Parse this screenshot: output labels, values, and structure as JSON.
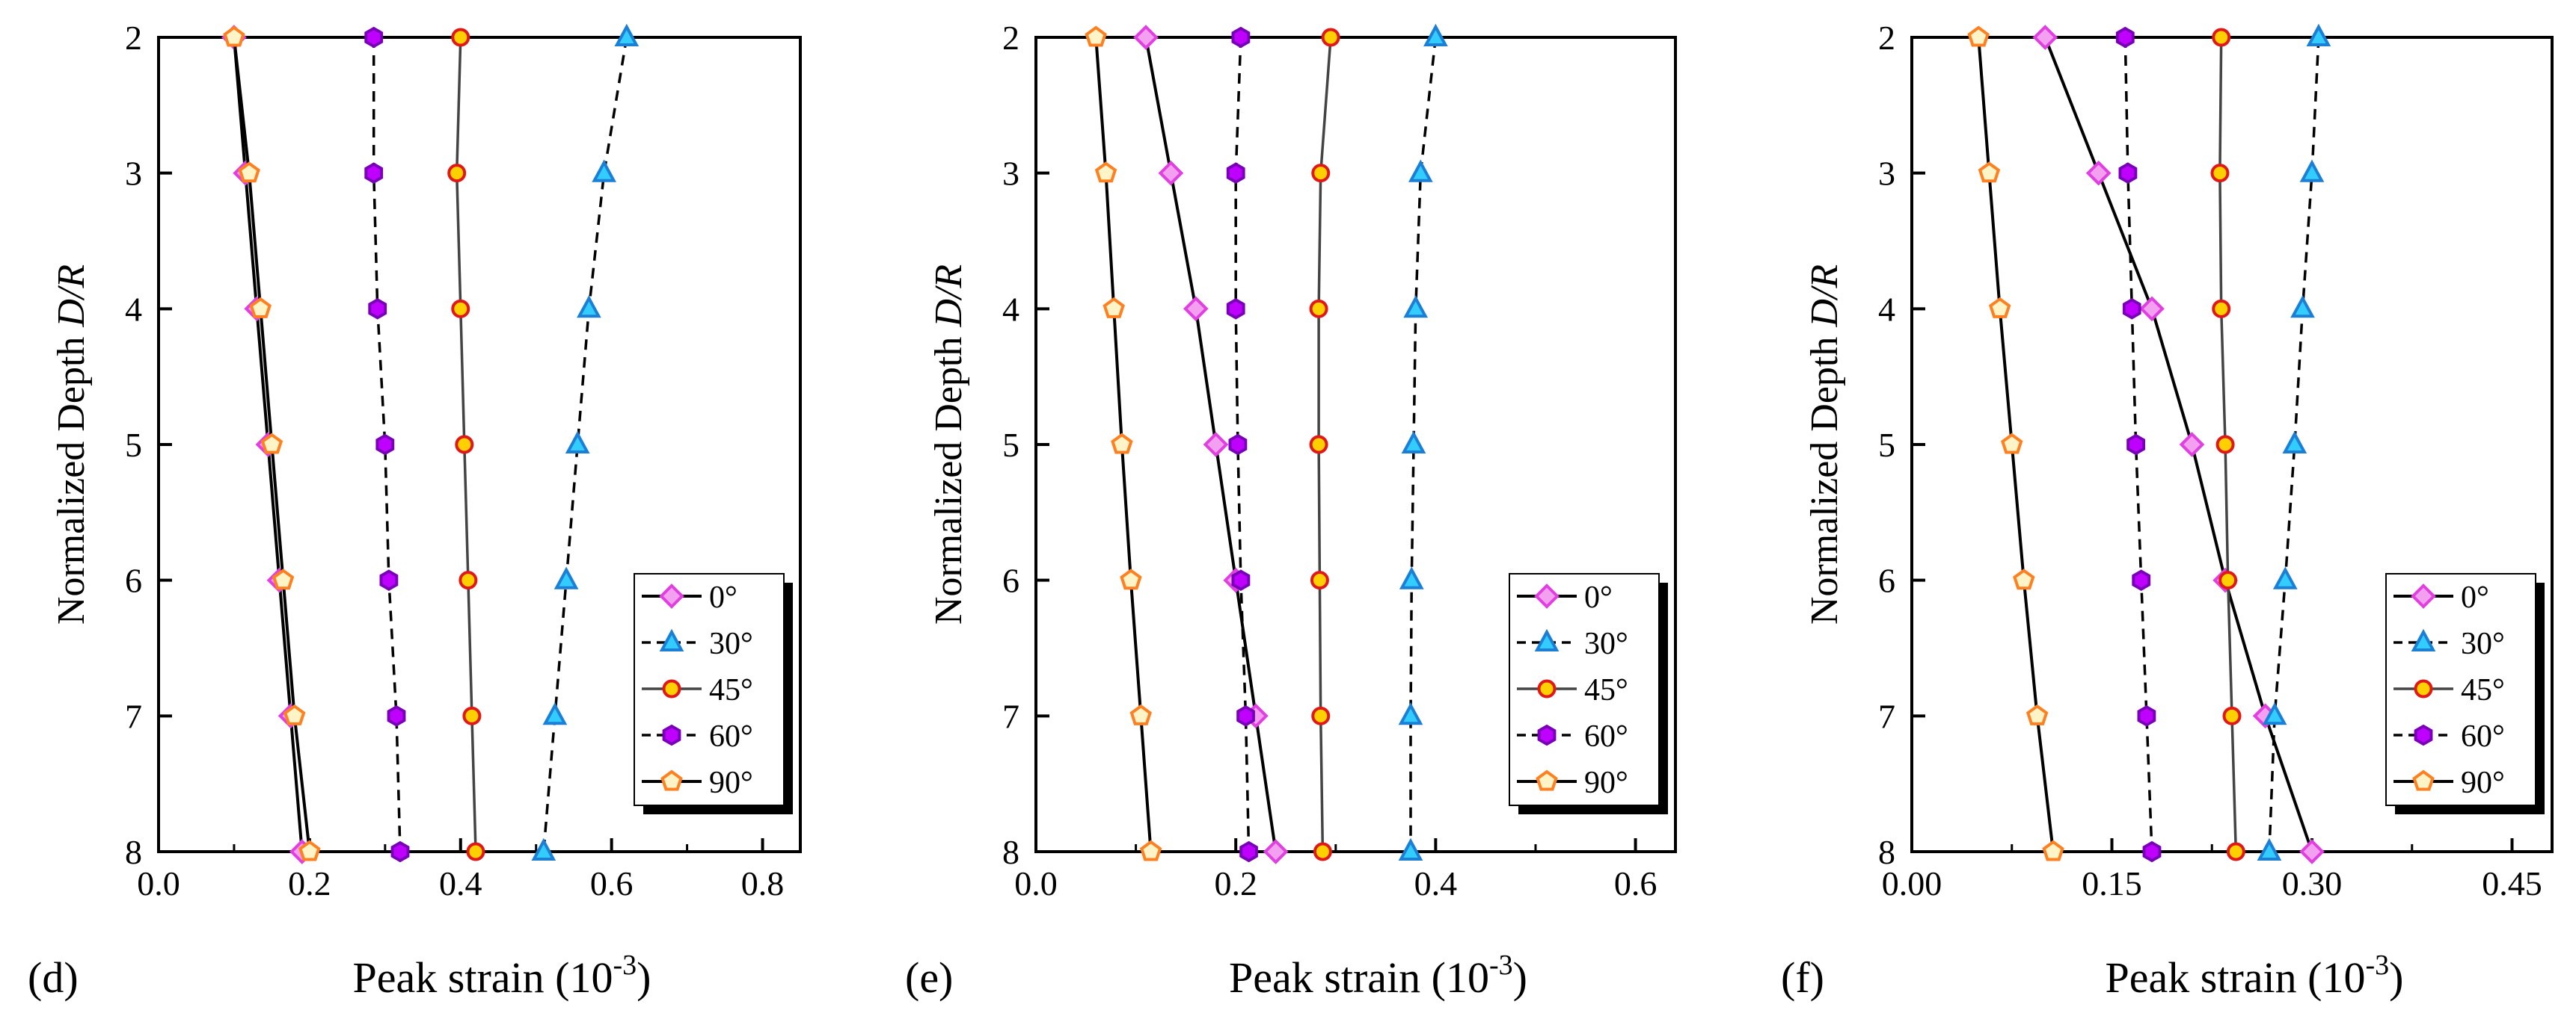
{
  "figure": {
    "colors": {
      "deg0": "#e040e0",
      "deg0_fill": "#f4a0f0",
      "deg30": "#1c7fd6",
      "deg30_fill": "#33ccff",
      "deg45": "#e01818",
      "deg45_fill": "#ffd000",
      "deg60": "#7a00b8",
      "deg60_fill": "#c000ff",
      "deg90": "#ff8020",
      "deg90_fill": "#fff4c8",
      "axis": "#000000"
    }
  },
  "chart_data": [
    {
      "type": "line",
      "panel_label": "(d)",
      "xlabel": "Peak strain (10",
      "xlabel_sup": "-3",
      "xlabel_tail": ")",
      "ylabel_prefix": "Normalized Depth ",
      "ylabel_italic": "D/R",
      "xlim": [
        0.0,
        0.85
      ],
      "ylim": [
        2,
        8
      ],
      "y_reversed": true,
      "x_ticks": [
        0.0,
        0.2,
        0.4,
        0.6,
        0.8
      ],
      "x_tick_labels": [
        "0.0",
        "0.2",
        "0.4",
        "0.6",
        "0.8"
      ],
      "y_ticks": [
        2,
        3,
        4,
        5,
        6,
        7,
        8
      ],
      "y_tick_labels": [
        "2",
        "3",
        "4",
        "5",
        "6",
        "7",
        "8"
      ],
      "y": [
        2,
        3,
        4,
        5,
        6,
        7,
        8
      ],
      "legend_position": "bottom-right",
      "series": [
        {
          "name": "0°",
          "marker": "diamond",
          "line": "solid",
          "values": [
            0.1,
            0.115,
            0.13,
            0.145,
            0.16,
            0.175,
            0.19
          ]
        },
        {
          "name": "30°",
          "marker": "triangle",
          "line": "dashed",
          "values": [
            0.62,
            0.59,
            0.57,
            0.555,
            0.54,
            0.525,
            0.51
          ]
        },
        {
          "name": "45°",
          "marker": "circle",
          "line": "solid-gray",
          "values": [
            0.4,
            0.395,
            0.4,
            0.405,
            0.41,
            0.415,
            0.42
          ]
        },
        {
          "name": "60°",
          "marker": "hexagon",
          "line": "dashed",
          "values": [
            0.285,
            0.285,
            0.29,
            0.3,
            0.305,
            0.315,
            0.32
          ]
        },
        {
          "name": "90°",
          "marker": "pentagon",
          "line": "solid",
          "values": [
            0.1,
            0.12,
            0.135,
            0.15,
            0.165,
            0.18,
            0.2
          ]
        }
      ]
    },
    {
      "type": "line",
      "panel_label": "(e)",
      "xlabel": "Peak strain (10",
      "xlabel_sup": "-3",
      "xlabel_tail": ")",
      "ylabel_prefix": "Normalized Depth ",
      "ylabel_italic": "D/R",
      "xlim": [
        0.0,
        0.64
      ],
      "ylim": [
        2,
        8
      ],
      "y_reversed": true,
      "x_ticks": [
        0.0,
        0.2,
        0.4,
        0.6
      ],
      "x_tick_labels": [
        "0.0",
        "0.2",
        "0.4",
        "0.6"
      ],
      "y_ticks": [
        2,
        3,
        4,
        5,
        6,
        7,
        8
      ],
      "y_tick_labels": [
        "2",
        "3",
        "4",
        "5",
        "6",
        "7",
        "8"
      ],
      "y": [
        2,
        3,
        4,
        5,
        6,
        7,
        8
      ],
      "legend_position": "bottom-right",
      "series": [
        {
          "name": "0°",
          "marker": "diamond",
          "line": "solid",
          "values": [
            0.11,
            0.135,
            0.16,
            0.18,
            0.2,
            0.22,
            0.24
          ]
        },
        {
          "name": "30°",
          "marker": "triangle",
          "line": "dashed",
          "values": [
            0.4,
            0.385,
            0.38,
            0.378,
            0.376,
            0.375,
            0.375
          ]
        },
        {
          "name": "45°",
          "marker": "circle",
          "line": "solid-gray",
          "values": [
            0.295,
            0.285,
            0.283,
            0.283,
            0.284,
            0.285,
            0.287
          ]
        },
        {
          "name": "60°",
          "marker": "hexagon",
          "line": "dashed",
          "values": [
            0.205,
            0.2,
            0.2,
            0.202,
            0.205,
            0.21,
            0.213
          ]
        },
        {
          "name": "90°",
          "marker": "pentagon",
          "line": "solid",
          "values": [
            0.06,
            0.07,
            0.078,
            0.086,
            0.095,
            0.105,
            0.115
          ]
        }
      ]
    },
    {
      "type": "line",
      "panel_label": "(f)",
      "xlabel": "Peak strain (10",
      "xlabel_sup": "-3",
      "xlabel_tail": ")",
      "ylabel_prefix": "Normalized Depth ",
      "ylabel_italic": "D/R",
      "xlim": [
        0.0,
        0.48
      ],
      "ylim": [
        2,
        8
      ],
      "y_reversed": true,
      "x_ticks": [
        0.0,
        0.15,
        0.3,
        0.45
      ],
      "x_tick_labels": [
        "0.00",
        "0.15",
        "0.30",
        "0.45"
      ],
      "y_ticks": [
        2,
        3,
        4,
        5,
        6,
        7,
        8
      ],
      "y_tick_labels": [
        "2",
        "3",
        "4",
        "5",
        "6",
        "7",
        "8"
      ],
      "y": [
        2,
        3,
        4,
        5,
        6,
        7,
        8
      ],
      "legend_position": "bottom-right",
      "series": [
        {
          "name": "0°",
          "marker": "diamond",
          "line": "solid",
          "values": [
            0.1,
            0.14,
            0.18,
            0.21,
            0.235,
            0.265,
            0.3
          ]
        },
        {
          "name": "30°",
          "marker": "triangle",
          "line": "dashed",
          "values": [
            0.305,
            0.3,
            0.293,
            0.287,
            0.28,
            0.272,
            0.268
          ]
        },
        {
          "name": "45°",
          "marker": "circle",
          "line": "solid-gray",
          "values": [
            0.232,
            0.231,
            0.232,
            0.235,
            0.237,
            0.24,
            0.243
          ]
        },
        {
          "name": "60°",
          "marker": "hexagon",
          "line": "dashed",
          "values": [
            0.16,
            0.162,
            0.165,
            0.168,
            0.172,
            0.176,
            0.18
          ]
        },
        {
          "name": "90°",
          "marker": "pentagon",
          "line": "solid",
          "values": [
            0.05,
            0.058,
            0.066,
            0.075,
            0.084,
            0.094,
            0.106
          ]
        }
      ]
    }
  ]
}
